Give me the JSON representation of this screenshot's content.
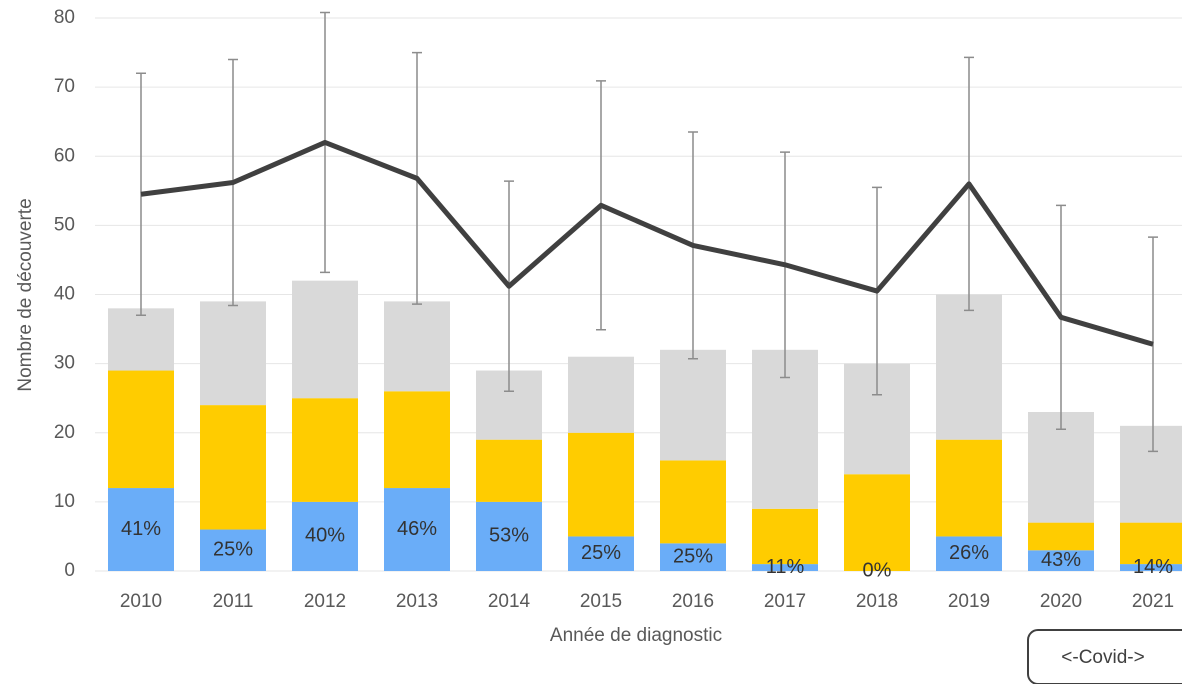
{
  "chart_data": {
    "type": "bar_line",
    "xlabel": "Année de diagnostic",
    "ylabel": "Nombre de découverte",
    "annotation": "<-Covid->",
    "categories": [
      "2010",
      "2011",
      "2012",
      "2013",
      "2014",
      "2015",
      "2016",
      "2017",
      "2018",
      "2019",
      "2020",
      "2021"
    ],
    "series": [
      {
        "color": "#6aadf8",
        "values": [
          12,
          6,
          10,
          12,
          10,
          5,
          4,
          1,
          0,
          5,
          3,
          1
        ]
      },
      {
        "color": "#ffcc00",
        "values": [
          17,
          18,
          15,
          14,
          9,
          15,
          12,
          8,
          14,
          14,
          4,
          6
        ]
      },
      {
        "color": "#d9d9d9",
        "values": [
          9,
          15,
          17,
          13,
          10,
          11,
          16,
          23,
          16,
          21,
          16,
          14
        ]
      }
    ],
    "segment_labels": [
      "41%",
      "25%",
      "40%",
      "46%",
      "53%",
      "25%",
      "25%",
      "11%",
      "0%",
      "26%",
      "43%",
      "14%"
    ],
    "line": {
      "color": "#404040",
      "values": [
        54.5,
        56.2,
        62,
        56.8,
        41.2,
        52.9,
        47.1,
        44.3,
        40.5,
        56,
        36.7,
        32.8
      ],
      "errors": [
        17.5,
        17.8,
        18.8,
        18.2,
        15.2,
        18,
        16.4,
        16.3,
        15,
        18.3,
        16.2,
        15.5
      ]
    },
    "ylim": [
      0,
      80
    ],
    "yticks": [
      0,
      10,
      20,
      30,
      40,
      50,
      60,
      70,
      80
    ],
    "grid": true
  }
}
